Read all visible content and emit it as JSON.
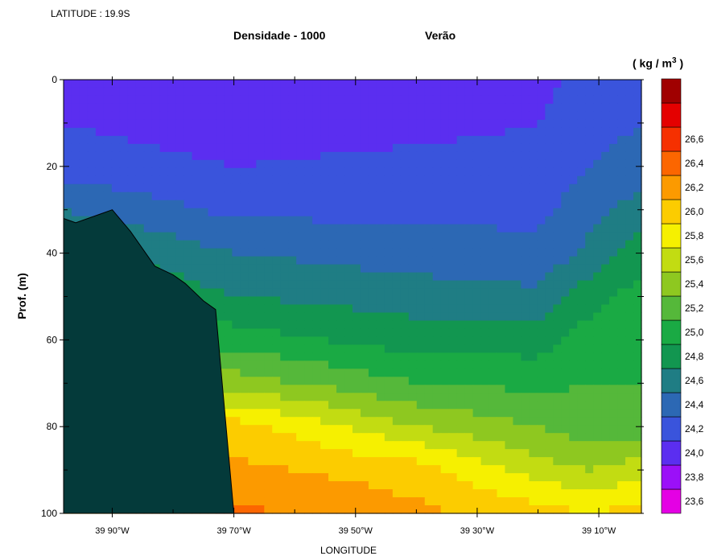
{
  "header": {
    "latitude": "LATITUDE : 19.9S",
    "title": "Densidade - 1000",
    "season": "Verão",
    "unit_open": "( kg / m",
    "unit_sup": "3",
    "unit_close": " )"
  },
  "chart_data": {
    "type": "contour",
    "title": "Densidade - 1000",
    "subtitle": "Verão",
    "latitude": "LATITUDE : 19.9S",
    "xlabel": "LONGITUDE",
    "ylabel": "Prof. (m)",
    "unit": "kg / m3",
    "ylim": [
      0,
      100
    ],
    "y_inverted": true,
    "xlim": [
      39.98,
      39.03
    ],
    "yticks": [
      0,
      20,
      40,
      60,
      80,
      100
    ],
    "ytick_labels": [
      "0",
      "20",
      "40",
      "60",
      "80",
      "100"
    ],
    "xticks": [
      39.9,
      39.7,
      39.5,
      39.3,
      39.1
    ],
    "xtick_labels": [
      "39 90°W",
      "39 70°W",
      "39 50°W",
      "39 30°W",
      "39 10°W"
    ],
    "colorbar": {
      "levels": [
        "23,6",
        "23,8",
        "24,0",
        "24,2",
        "24,4",
        "24,6",
        "24,8",
        "25,0",
        "25,2",
        "25,4",
        "25,6",
        "25,8",
        "26,0",
        "26,2",
        "26,4",
        "26,6"
      ],
      "colors": [
        "#e400e4",
        "#9b10f8",
        "#5b2ef0",
        "#3a54dc",
        "#2c68b4",
        "#1f7d84",
        "#129650",
        "#1aaa44",
        "#55b83a",
        "#8ec820",
        "#c2dc12",
        "#f6f000",
        "#fccc00",
        "#fc9a00",
        "#fc6600",
        "#f63000",
        "#e40000",
        "#a00000"
      ]
    },
    "columns_lon": [
      39.98,
      39.96,
      39.95,
      39.87,
      39.83,
      39.8,
      39.77,
      39.73,
      39.7,
      39.65,
      39.55,
      39.4,
      39.35,
      39.28,
      39.2,
      39.17,
      39.12,
      39.03
    ],
    "density_field_depth": [
      0,
      10,
      20,
      30,
      40,
      50,
      60,
      70,
      80,
      90,
      100
    ],
    "density_field_lon": [
      39.98,
      39.7,
      39.4,
      39.2,
      39.12,
      39.03
    ],
    "density_field": [
      [
        23.9,
        23.9,
        23.9,
        23.95,
        24.05,
        24.1
      ],
      [
        24.0,
        23.9,
        23.95,
        24.0,
        24.1,
        24.2
      ],
      [
        24.1,
        24.0,
        24.05,
        24.05,
        24.2,
        24.3
      ],
      [
        24.4,
        24.15,
        24.15,
        24.15,
        24.3,
        24.5
      ],
      [
        24.7,
        24.4,
        24.3,
        24.25,
        24.45,
        24.7
      ],
      [
        24.9,
        24.6,
        24.5,
        24.45,
        24.7,
        24.9
      ],
      [
        25.1,
        24.9,
        24.7,
        24.7,
        24.9,
        25.0
      ],
      [
        25.3,
        25.3,
        25.0,
        24.95,
        25.0,
        25.0
      ],
      [
        25.5,
        25.9,
        25.4,
        25.2,
        25.1,
        25.1
      ],
      [
        25.7,
        26.05,
        25.9,
        25.5,
        25.4,
        25.5
      ],
      [
        25.9,
        26.25,
        26.05,
        25.9,
        25.8,
        25.9
      ]
    ],
    "bathymetry": {
      "lon": [
        39.98,
        39.96,
        39.9,
        39.87,
        39.83,
        39.8,
        39.78,
        39.75,
        39.73,
        39.7
      ],
      "depth": [
        32,
        33,
        30,
        35,
        43,
        45,
        47,
        51,
        53,
        100
      ]
    }
  }
}
